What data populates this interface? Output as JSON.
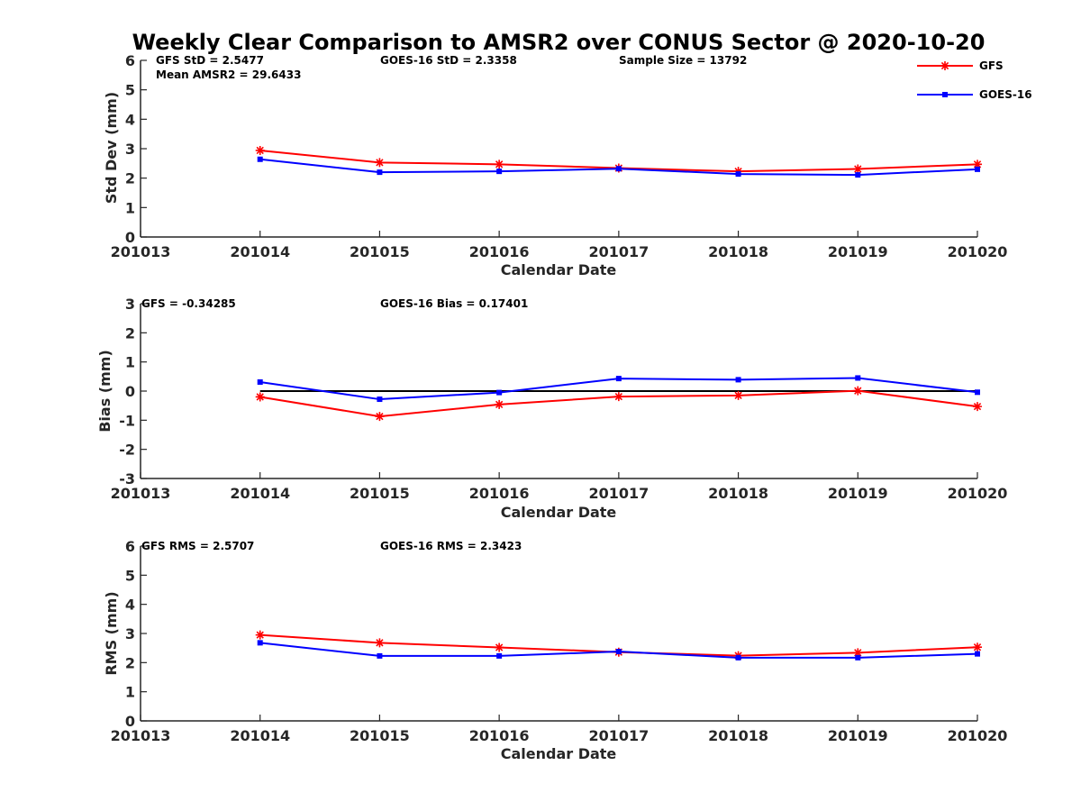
{
  "title": "Weekly Clear Comparison to AMSR2 over CONUS Sector @ 2020-10-20",
  "colors": {
    "gfs": "#ff0000",
    "goes": "#0000ff",
    "axis": "#262626",
    "zero": "#000000"
  },
  "legend": {
    "placement": "top-right",
    "entries": [
      "GFS",
      "GOES-16"
    ]
  },
  "chart_data": [
    {
      "type": "line",
      "id": "std",
      "xlabel": "Calendar Date",
      "ylabel": "Std Dev (mm)",
      "categories": [
        "201013",
        "201014",
        "201015",
        "201016",
        "201017",
        "201018",
        "201019",
        "201020"
      ],
      "ylim": [
        0,
        6
      ],
      "yticks": [
        "0",
        "1",
        "2",
        "3",
        "4",
        "5",
        "6"
      ],
      "series": [
        {
          "name": "GFS",
          "color": "#ff0000",
          "marker": "star",
          "values": [
            null,
            2.94,
            2.53,
            2.47,
            2.34,
            2.23,
            2.31,
            2.47
          ]
        },
        {
          "name": "GOES-16",
          "color": "#0000ff",
          "marker": "square",
          "values": [
            null,
            2.64,
            2.2,
            2.23,
            2.32,
            2.14,
            2.11,
            2.3
          ]
        }
      ],
      "annotations": [
        "GFS StD = 2.5477",
        "Mean AMSR2 = 29.6433",
        "GOES-16 StD = 2.3358",
        "Sample Size = 13792"
      ]
    },
    {
      "type": "line",
      "id": "bias",
      "xlabel": "Calendar Date",
      "ylabel": "Bias (mm)",
      "categories": [
        "201013",
        "201014",
        "201015",
        "201016",
        "201017",
        "201018",
        "201019",
        "201020"
      ],
      "ylim": [
        -3,
        3
      ],
      "yticks": [
        "-3",
        "-2",
        "-1",
        "0",
        "1",
        "2",
        "3"
      ],
      "zero_line": true,
      "series": [
        {
          "name": "GFS",
          "color": "#ff0000",
          "marker": "star",
          "values": [
            null,
            -0.2,
            -0.87,
            -0.46,
            -0.19,
            -0.15,
            0.01,
            -0.53
          ]
        },
        {
          "name": "GOES-16",
          "color": "#0000ff",
          "marker": "square",
          "values": [
            null,
            0.31,
            -0.28,
            -0.05,
            0.43,
            0.39,
            0.45,
            -0.04
          ]
        }
      ],
      "annotations": [
        "GFS = -0.34285",
        "GOES-16 Bias  = 0.17401"
      ]
    },
    {
      "type": "line",
      "id": "rms",
      "xlabel": "Calendar Date",
      "ylabel": "RMS (mm)",
      "categories": [
        "201013",
        "201014",
        "201015",
        "201016",
        "201017",
        "201018",
        "201019",
        "201020"
      ],
      "ylim": [
        0,
        6
      ],
      "yticks": [
        "0",
        "1",
        "2",
        "3",
        "4",
        "5",
        "6"
      ],
      "series": [
        {
          "name": "GFS",
          "color": "#ff0000",
          "marker": "star",
          "values": [
            null,
            2.95,
            2.68,
            2.52,
            2.36,
            2.24,
            2.34,
            2.53
          ]
        },
        {
          "name": "GOES-16",
          "color": "#0000ff",
          "marker": "square",
          "values": [
            null,
            2.68,
            2.23,
            2.23,
            2.38,
            2.17,
            2.17,
            2.3
          ]
        }
      ],
      "annotations": [
        "GFS RMS = 2.5707",
        "GOES-16 RMS = 2.3423"
      ]
    }
  ]
}
